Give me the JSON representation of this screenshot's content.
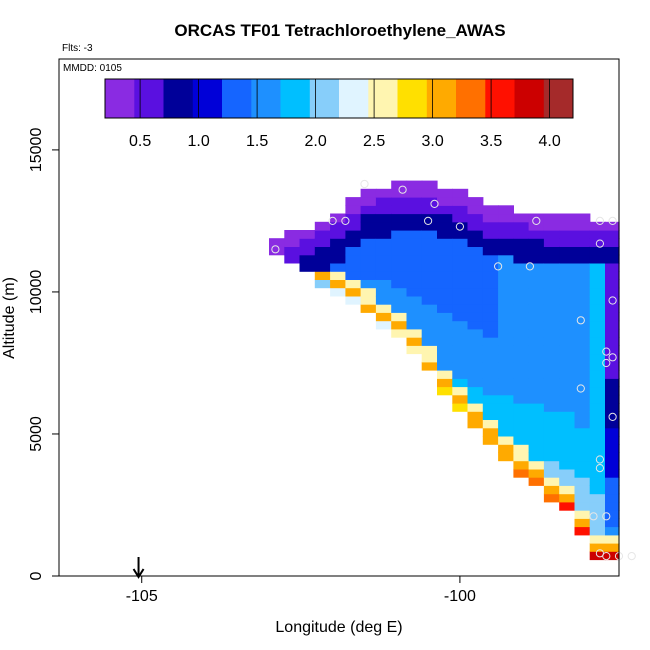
{
  "chart_data": {
    "type": "heatmap",
    "title": "ORCAS TF01 Tetrachloroethylene_AWAS",
    "flights_label": "Flts: -3",
    "date_label": "MMDD: 0105",
    "xlabel": "Longitude (deg E)",
    "ylabel": "Altitude (m)",
    "xlim": [
      -106.3,
      -97.5
    ],
    "ylim": [
      0,
      18200
    ],
    "x_ticks": [
      -105,
      -100
    ],
    "y_ticks": [
      0,
      5000,
      10000,
      15000
    ],
    "colorbar": {
      "range": [
        0.2,
        4.2
      ],
      "ticks": [
        0.5,
        1.0,
        1.5,
        2.0,
        2.5,
        3.0,
        3.5,
        4.0
      ],
      "colors": [
        "#8a2be2",
        "#5a10e0",
        "#000099",
        "#0000d8",
        "#1565ff",
        "#1e90ff",
        "#00bfff",
        "#87cefa",
        "#e0f4ff",
        "#fff5b0",
        "#ffe000",
        "#ffaa00",
        "#ff7000",
        "#ff1000",
        "#cc0000",
        "#a52a2a"
      ]
    },
    "arrow_marker_lon": -105.05,
    "observations": [
      {
        "lon": -101.5,
        "alt": 13800
      },
      {
        "lon": -100.9,
        "alt": 13600
      },
      {
        "lon": -100.4,
        "alt": 13100
      },
      {
        "lon": -101.8,
        "alt": 12500
      },
      {
        "lon": -102.0,
        "alt": 12500
      },
      {
        "lon": -100.5,
        "alt": 12500
      },
      {
        "lon": -100.0,
        "alt": 12300
      },
      {
        "lon": -98.8,
        "alt": 12500
      },
      {
        "lon": -97.6,
        "alt": 12500
      },
      {
        "lon": -97.8,
        "alt": 12500
      },
      {
        "lon": -97.8,
        "alt": 11700
      },
      {
        "lon": -102.9,
        "alt": 11500
      },
      {
        "lon": -99.4,
        "alt": 10900
      },
      {
        "lon": -98.9,
        "alt": 10900
      },
      {
        "lon": -97.6,
        "alt": 9700
      },
      {
        "lon": -98.1,
        "alt": 9000
      },
      {
        "lon": -97.7,
        "alt": 7900
      },
      {
        "lon": -97.6,
        "alt": 7700
      },
      {
        "lon": -97.7,
        "alt": 7500
      },
      {
        "lon": -98.1,
        "alt": 6600
      },
      {
        "lon": -97.6,
        "alt": 5600
      },
      {
        "lon": -97.8,
        "alt": 4100
      },
      {
        "lon": -97.8,
        "alt": 3800
      },
      {
        "lon": -97.7,
        "alt": 2100
      },
      {
        "lon": -97.9,
        "alt": 2100
      },
      {
        "lon": -97.8,
        "alt": 800
      },
      {
        "lon": -97.7,
        "alt": 700
      },
      {
        "lon": -97.5,
        "alt": 700
      },
      {
        "lon": -97.3,
        "alt": 700
      }
    ],
    "field_description_values": {
      "upper_edge": [
        {
          "lon": -103.0,
          "alt": 11700
        },
        {
          "lon": -102.5,
          "alt": 12200
        },
        {
          "lon": -102.0,
          "alt": 12700
        },
        {
          "lon": -101.5,
          "alt": 13600
        },
        {
          "lon": -100.6,
          "alt": 13900
        },
        {
          "lon": -100.0,
          "alt": 13500
        },
        {
          "lon": -99.5,
          "alt": 13000
        },
        {
          "lon": -98.5,
          "alt": 12700
        },
        {
          "lon": -97.8,
          "alt": 12600
        },
        {
          "lon": -97.5,
          "alt": 12600
        }
      ],
      "lower_edge": [
        {
          "lon": -103.0,
          "alt": 11500
        },
        {
          "lon": -101.0,
          "alt": 8500
        },
        {
          "lon": -99.5,
          "alt": 4500
        },
        {
          "lon": -98.2,
          "alt": 2000
        },
        {
          "lon": -97.9,
          "alt": 600
        }
      ]
    }
  }
}
